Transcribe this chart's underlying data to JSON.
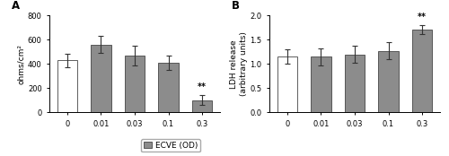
{
  "panel_A": {
    "categories": [
      "0",
      "0.01",
      "0.03",
      "0.1",
      "0.3"
    ],
    "values": [
      430,
      560,
      470,
      410,
      100
    ],
    "errors": [
      55,
      70,
      80,
      60,
      40
    ],
    "bar_colors": [
      "#ffffff",
      "#8c8c8c",
      "#8c8c8c",
      "#8c8c8c",
      "#8c8c8c"
    ],
    "bar_edge_color": "#444444",
    "ylabel": "ohms/cm²",
    "ylim": [
      0,
      800
    ],
    "yticks": [
      0,
      200,
      400,
      600,
      800
    ],
    "panel_label": "A",
    "sig_bar": 4,
    "sig_text": "**"
  },
  "panel_B": {
    "categories": [
      "0",
      "0.01",
      "0.03",
      "0.1",
      "0.3"
    ],
    "values": [
      1.15,
      1.15,
      1.2,
      1.27,
      1.71
    ],
    "errors": [
      0.15,
      0.18,
      0.18,
      0.18,
      0.09
    ],
    "bar_colors": [
      "#ffffff",
      "#8c8c8c",
      "#8c8c8c",
      "#8c8c8c",
      "#8c8c8c"
    ],
    "bar_edge_color": "#444444",
    "ylabel": "LDH release\n(arbitrary units)",
    "ylim": [
      0.0,
      2.0
    ],
    "yticks": [
      0.0,
      0.5,
      1.0,
      1.5,
      2.0
    ],
    "ytick_labels": [
      "0.0",
      "0.5",
      "1.0",
      "1.5",
      "2.0"
    ],
    "panel_label": "B",
    "sig_bar": 4,
    "sig_text": "**"
  },
  "legend_label": "ECVE (OD)",
  "legend_color": "#8c8c8c",
  "bar_width": 0.6,
  "background_color": "#ffffff",
  "font_size": 6.5,
  "label_font_size": 6.5,
  "tick_font_size": 6
}
